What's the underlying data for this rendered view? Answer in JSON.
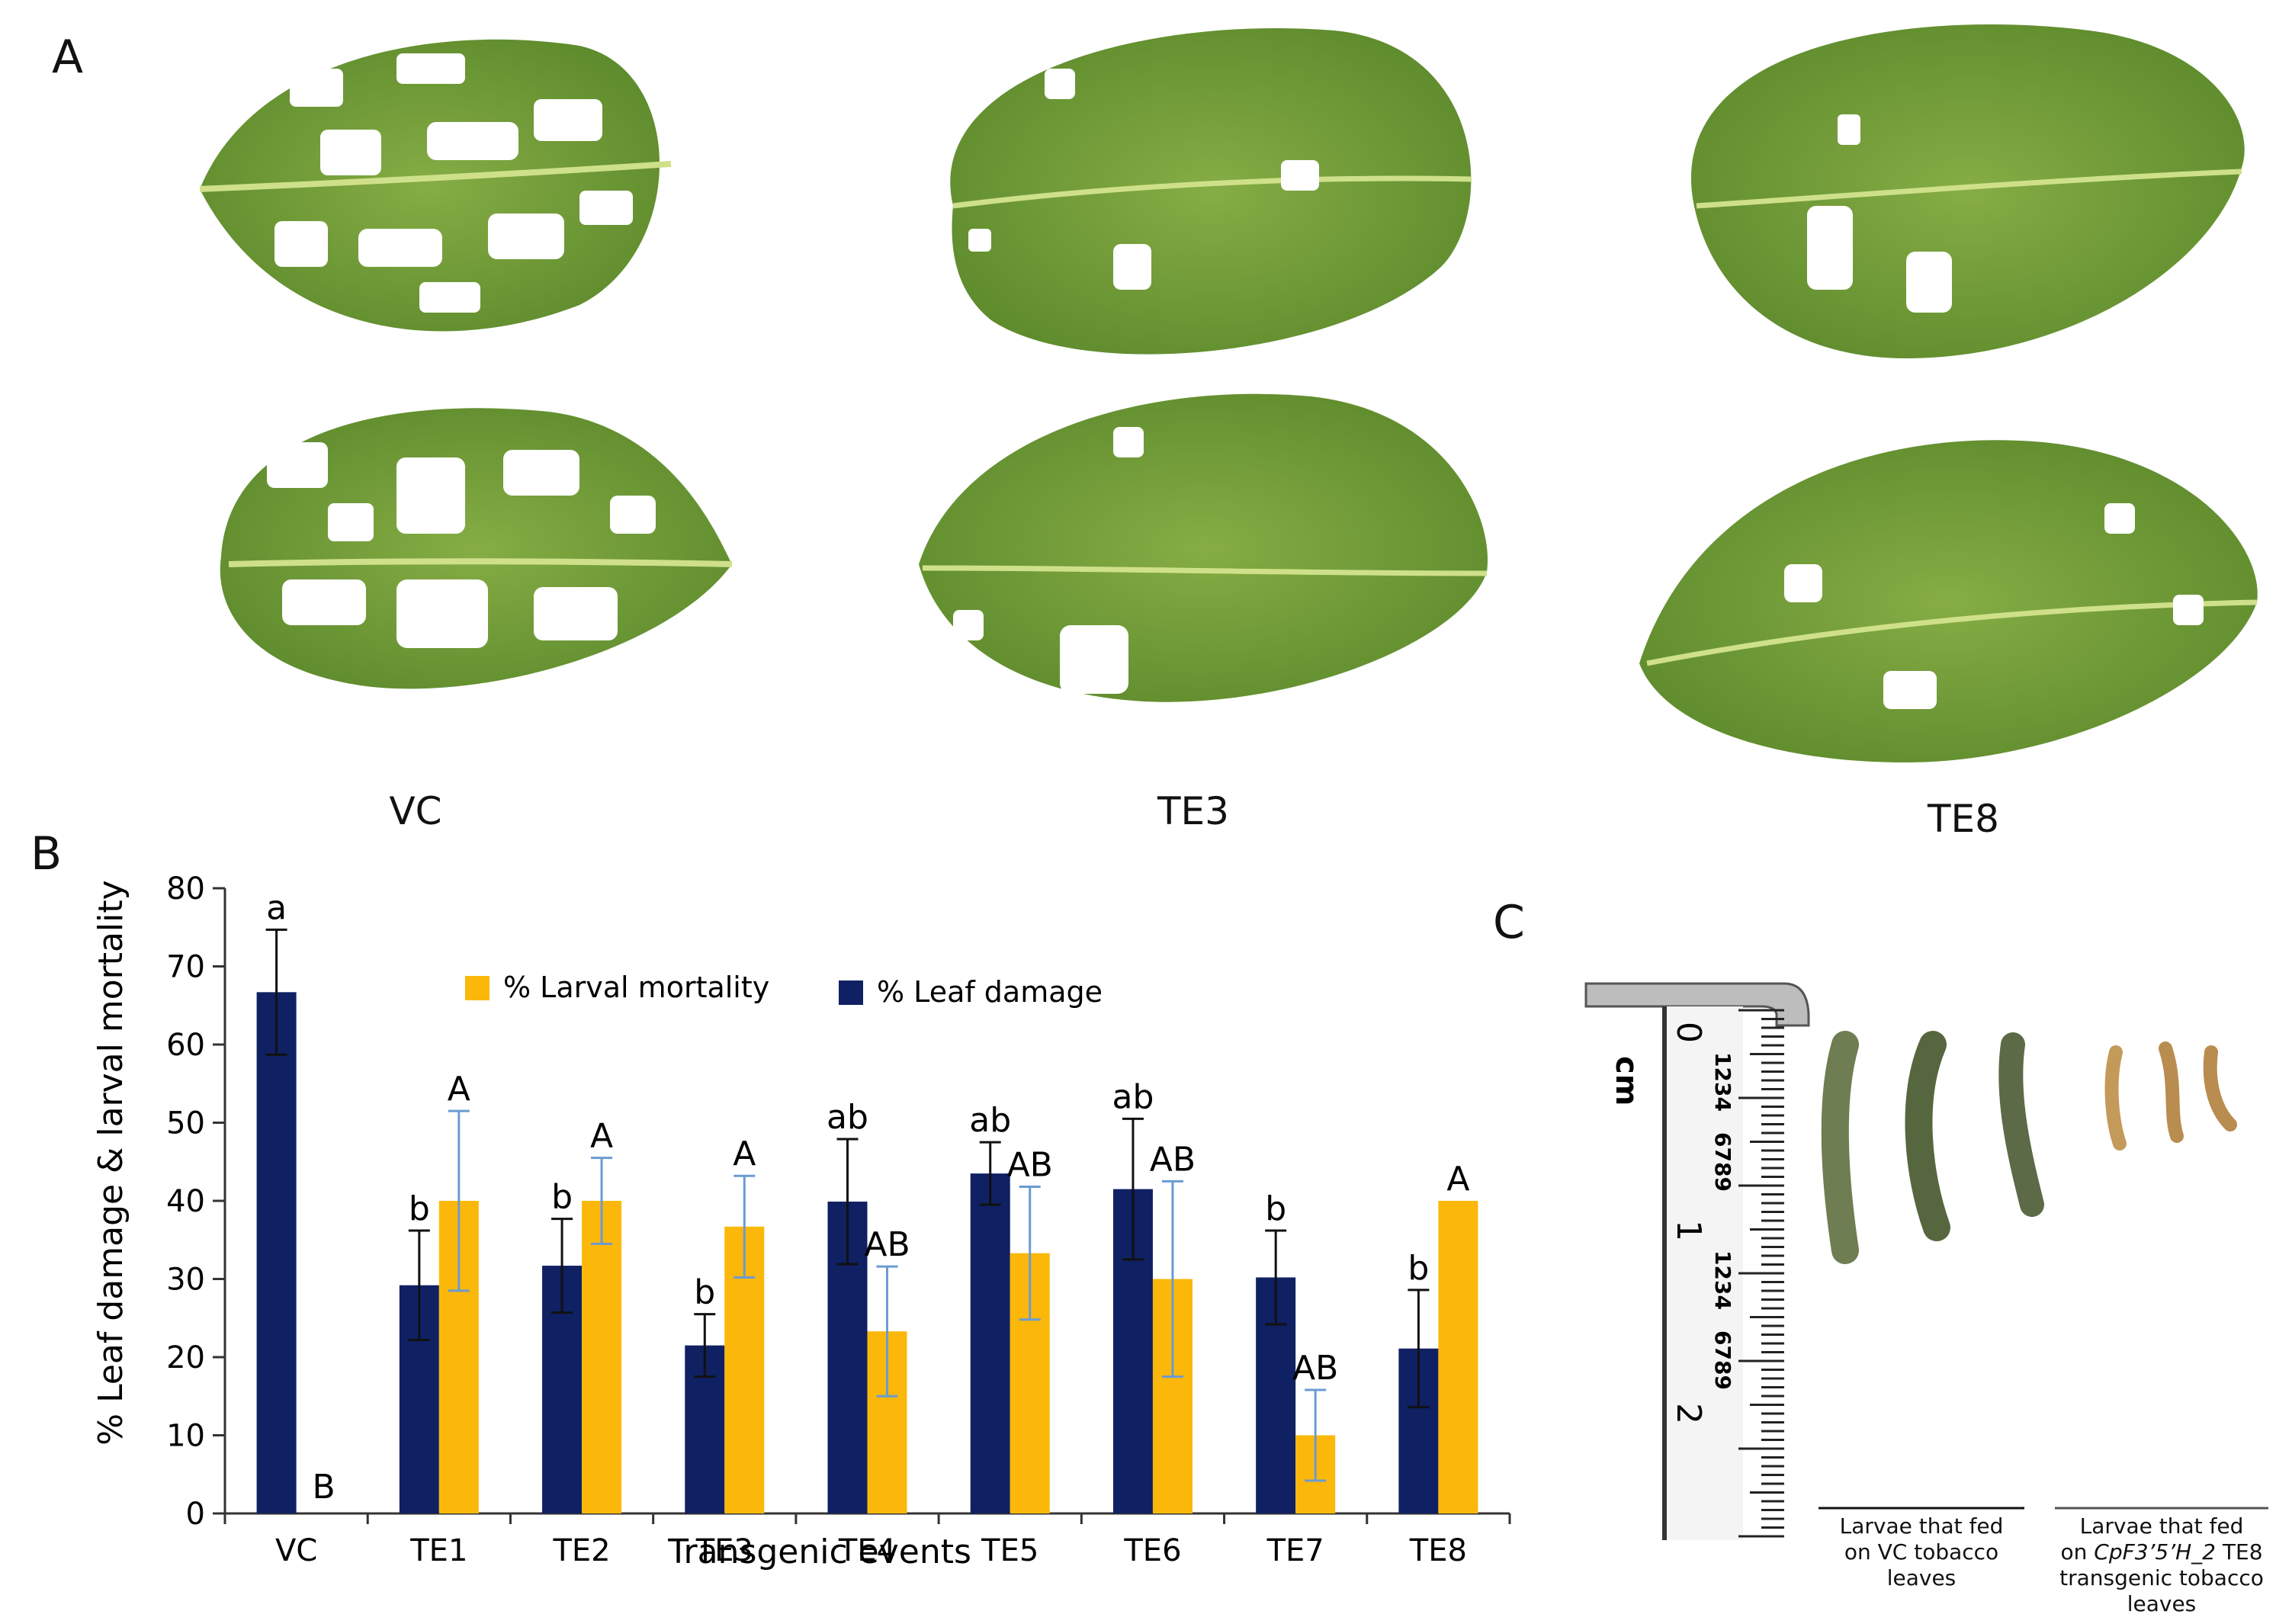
{
  "panels": {
    "a": "A",
    "b": "B",
    "c": "C"
  },
  "panel_a": {
    "leaf_labels": [
      "VC",
      "TE3",
      "TE8"
    ]
  },
  "panel_c": {
    "ruler_unit": "cm",
    "ruler_numbers": [
      "0",
      "1",
      "2"
    ],
    "ruler_small_digits": [
      "1234",
      "6789",
      "1234",
      "6789"
    ],
    "left_caption": [
      "Larvae that fed",
      "on VC tobacco",
      "leaves"
    ],
    "right_caption_prefix": "on ",
    "right_caption_gene": "CpF3’5’H_2",
    "right_caption_suffix": " TE8",
    "right_caption": [
      "Larvae that fed",
      "transgenic tobacco",
      "leaves"
    ]
  },
  "colors": {
    "leaf_damage": "#0f2063",
    "larval_mortality": "#fbb80a",
    "damage_error": "#111111",
    "mortality_error": "#6b9bd2",
    "leaf_green": "#6f9a35"
  },
  "chart_data": {
    "type": "bar",
    "title": "",
    "xlabel": "Transgenic events",
    "ylabel": "% Leaf damage & larval mortality",
    "ylim": [
      0,
      80
    ],
    "yticks": [
      0,
      10,
      20,
      30,
      40,
      50,
      60,
      70,
      80
    ],
    "grid": false,
    "legend_position": "top-center",
    "categories": [
      "VC",
      "TE1",
      "TE2",
      "TE3",
      "TE4",
      "TE5",
      "TE6",
      "TE7",
      "TE8"
    ],
    "series": [
      {
        "name": "% Leaf damage",
        "values": [
          66.7,
          29.2,
          31.7,
          21.5,
          39.9,
          43.5,
          41.5,
          30.2,
          21.1
        ],
        "errors": [
          8.0,
          7.0,
          6.0,
          4.0,
          8.0,
          4.0,
          9.0,
          6.0,
          7.5
        ],
        "letters": [
          "a",
          "b",
          "b",
          "b",
          "ab",
          "ab",
          "ab",
          "b",
          "b"
        ]
      },
      {
        "name": "% Larval mortality",
        "values": [
          0,
          40,
          40,
          36.7,
          23.3,
          33.3,
          30,
          10,
          40
        ],
        "errors": [
          0,
          11.5,
          5.5,
          6.5,
          8.3,
          8.5,
          12.5,
          5.8,
          0
        ],
        "letters": [
          "B",
          "A",
          "A",
          "A",
          "AB",
          "AB",
          "AB",
          "AB",
          "A"
        ]
      }
    ],
    "legend_order": [
      "% Larval mortality",
      "% Leaf damage"
    ]
  }
}
